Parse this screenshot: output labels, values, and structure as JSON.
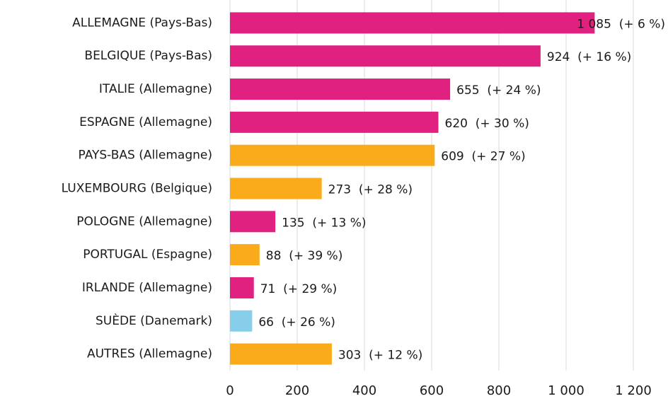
{
  "chart_data": {
    "type": "bar",
    "orientation": "horizontal",
    "categories": [
      "ALLEMAGNE (Pays-Bas)",
      "BELGIQUE (Pays-Bas)",
      "ITALIE (Allemagne)",
      "ESPAGNE (Allemagne)",
      "PAYS-BAS (Allemagne)",
      "LUXEMBOURG (Belgique)",
      "POLOGNE (Allemagne)",
      "PORTUGAL (Espagne)",
      "IRLANDE (Allemagne)",
      "SUÈDE (Danemark)",
      "AUTRES (Allemagne)"
    ],
    "values": [
      1085,
      924,
      655,
      620,
      609,
      273,
      135,
      88,
      71,
      66,
      303
    ],
    "value_labels": [
      "1 085  (+ 6 %)",
      "924  (+ 16 %)",
      "655  (+ 24 %)",
      "620  (+ 30 %)",
      "609  (+ 27 %)",
      "273  (+ 28 %)",
      "135  (+ 13 %)",
      "88  (+ 39 %)",
      "71  (+ 29 %)",
      "66  (+ 26 %)",
      "303  (+ 12 %)"
    ],
    "colors": [
      "#e0217f",
      "#e0217f",
      "#e0217f",
      "#e0217f",
      "#f9ab1b",
      "#f9ab1b",
      "#e0217f",
      "#f9ab1b",
      "#e0217f",
      "#87ceeb",
      "#f9ab1b"
    ],
    "xlim": [
      0,
      1200
    ],
    "xticks": [
      0,
      200,
      400,
      600,
      800,
      {
        "value": 1000,
        "label": "1 000"
      },
      {
        "value": 1200,
        "label": "1 200"
      }
    ],
    "grid": true
  }
}
